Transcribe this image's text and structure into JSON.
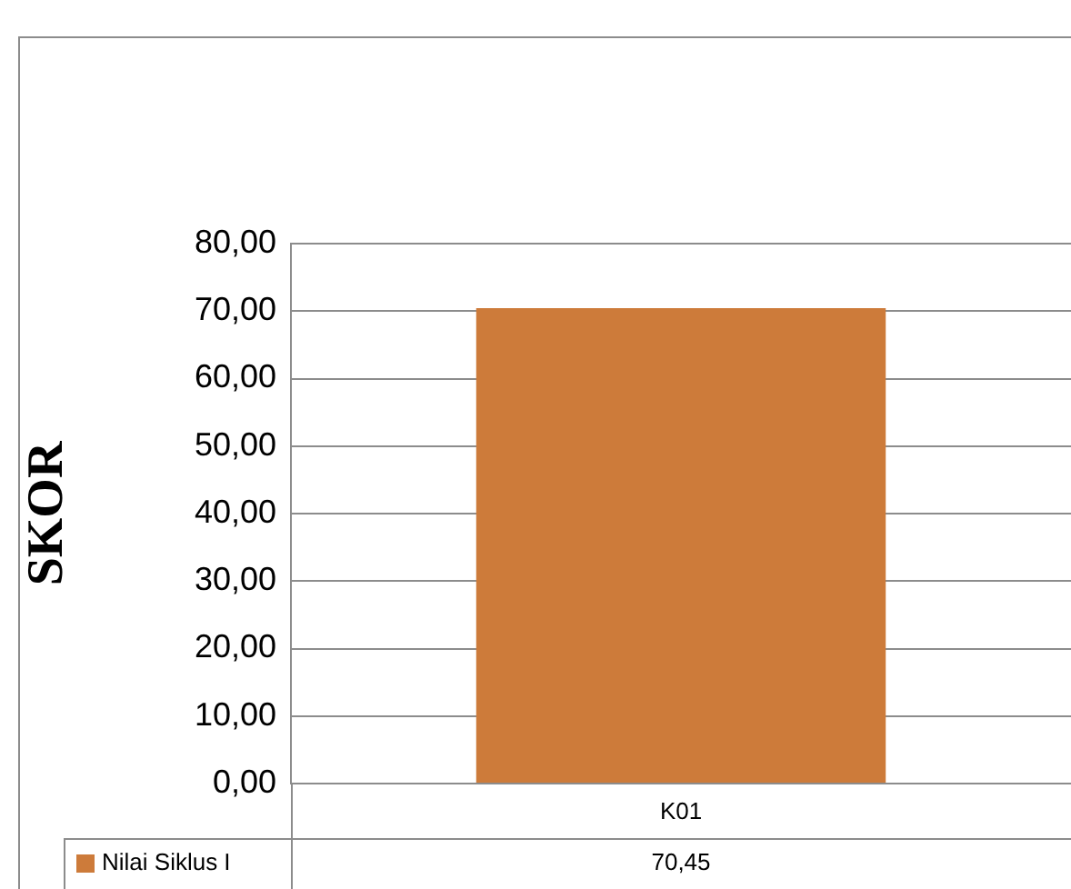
{
  "chart_data": {
    "type": "bar",
    "ylabel": "SKOR",
    "categories": [
      "K01"
    ],
    "series": [
      {
        "name": "Nilai Siklus I",
        "color": "#cd7b3a",
        "values": [
          70.45
        ],
        "value_labels": [
          "70,45"
        ]
      }
    ],
    "ylim": [
      0,
      80
    ],
    "yticks": [
      {
        "value": 0,
        "label": "0,00"
      },
      {
        "value": 10,
        "label": "10,00"
      },
      {
        "value": 20,
        "label": "20,00"
      },
      {
        "value": 30,
        "label": "30,00"
      },
      {
        "value": 40,
        "label": "40,00"
      },
      {
        "value": 50,
        "label": "50,00"
      },
      {
        "value": 60,
        "label": "60,00"
      },
      {
        "value": 70,
        "label": "70,00"
      },
      {
        "value": 80,
        "label": "80,00"
      }
    ],
    "grid": "y"
  }
}
